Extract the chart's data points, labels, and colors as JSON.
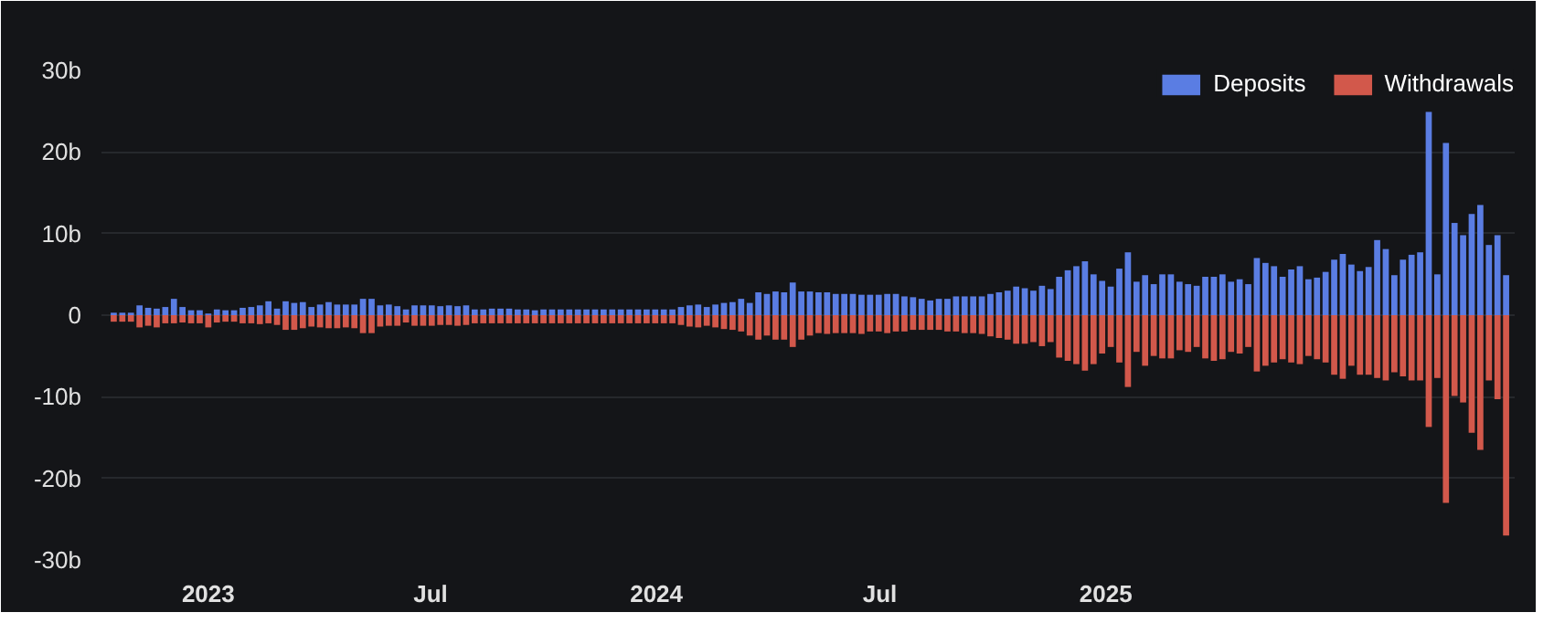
{
  "chart_data": {
    "type": "bar",
    "stacked": true,
    "legend": "top right",
    "grid": "y",
    "x": [
      "2022-10-16",
      "2022-10-23",
      "2022-10-30",
      "2022-11-06",
      "2022-11-13",
      "2022-11-20",
      "2022-11-27",
      "2022-12-04",
      "2022-12-11",
      "2022-12-18",
      "2022-12-25",
      "2023-01-01",
      "2023-01-08",
      "2023-01-15",
      "2023-01-22",
      "2023-01-29",
      "2023-02-05",
      "2023-02-12",
      "2023-02-19",
      "2023-02-26",
      "2023-03-05",
      "2023-03-12",
      "2023-03-19",
      "2023-03-26",
      "2023-04-02",
      "2023-04-09",
      "2023-04-16",
      "2023-04-23",
      "2023-04-30",
      "2023-05-07",
      "2023-05-14",
      "2023-05-21",
      "2023-05-28",
      "2023-06-04",
      "2023-06-11",
      "2023-06-18",
      "2023-06-25",
      "2023-07-02",
      "2023-07-09",
      "2023-07-16",
      "2023-07-23",
      "2023-07-30",
      "2023-08-06",
      "2023-08-13",
      "2023-08-20",
      "2023-08-27",
      "2023-09-03",
      "2023-09-10",
      "2023-09-17",
      "2023-09-24",
      "2023-10-01",
      "2023-10-08",
      "2023-10-15",
      "2023-10-22",
      "2023-10-29",
      "2023-11-05",
      "2023-11-12",
      "2023-11-19",
      "2023-11-26",
      "2023-12-03",
      "2023-12-10",
      "2023-12-17",
      "2023-12-24",
      "2023-12-31",
      "2024-01-07",
      "2024-01-14",
      "2024-01-21",
      "2024-01-28",
      "2024-02-04",
      "2024-02-11",
      "2024-02-18",
      "2024-02-25",
      "2024-03-03",
      "2024-03-10",
      "2024-03-17",
      "2024-03-24",
      "2024-03-31",
      "2024-04-07",
      "2024-04-14",
      "2024-04-21",
      "2024-04-28",
      "2024-05-05",
      "2024-05-12",
      "2024-05-19",
      "2024-05-26",
      "2024-06-02",
      "2024-06-09",
      "2024-06-16",
      "2024-06-23",
      "2024-06-30",
      "2024-07-07",
      "2024-07-14",
      "2024-07-21",
      "2024-07-28",
      "2024-08-04",
      "2024-08-11",
      "2024-08-18",
      "2024-08-25",
      "2024-09-01",
      "2024-09-08",
      "2024-09-15",
      "2024-09-22",
      "2024-09-29",
      "2024-10-06",
      "2024-10-13",
      "2024-10-20",
      "2024-10-27",
      "2024-11-03",
      "2024-11-10",
      "2024-11-17",
      "2024-11-24",
      "2024-12-01",
      "2024-12-08",
      "2024-12-15",
      "2024-12-22",
      "2024-12-29",
      "2025-01-05",
      "2025-01-12",
      "2025-01-19",
      "2025-01-26",
      "2025-02-02",
      "2025-02-09",
      "2025-02-16",
      "2025-02-23",
      "2025-03-02",
      "2025-03-09",
      "2025-03-16",
      "2025-03-23",
      "2025-03-30",
      "2025-04-06",
      "2025-04-13",
      "2025-04-20",
      "2025-04-27",
      "2025-05-04",
      "2025-05-11",
      "2025-05-18",
      "2025-05-25",
      "2025-06-01",
      "2025-06-08",
      "2025-06-15",
      "2025-06-22",
      "2025-06-29",
      "2025-07-06",
      "2025-07-13",
      "2025-07-20",
      "2025-07-27",
      "2025-08-03",
      "2025-08-10",
      "2025-08-17",
      "2025-08-24",
      "2025-08-31",
      "2025-09-07",
      "2025-09-14",
      "2025-09-21",
      "2025-09-28",
      "2025-10-05",
      "2025-10-12",
      "2025-10-19",
      "2025-10-26",
      "2025-11-02",
      "2025-11-09",
      "2025-11-16",
      "2025-11-23"
    ],
    "xlim": [
      "2022-10-06",
      "2025-11-30"
    ],
    "xticks": [
      {
        "value": "2023-01-01",
        "label": "2023"
      },
      {
        "value": "2023-07-01",
        "label": "Jul"
      },
      {
        "value": "2024-01-01",
        "label": "2024"
      },
      {
        "value": "2024-07-01",
        "label": "Jul"
      },
      {
        "value": "2025-01-01",
        "label": "2025"
      }
    ],
    "ylim": [
      -30,
      30
    ],
    "yticks": [
      {
        "value": -30,
        "label": "-30b"
      },
      {
        "value": -20,
        "label": "-20b"
      },
      {
        "value": -10,
        "label": "-10b"
      },
      0,
      {
        "value": 10,
        "label": "10b"
      },
      {
        "value": 20,
        "label": "20b"
      },
      {
        "value": 30,
        "label": "30b"
      }
    ],
    "series": [
      {
        "name": "Deposits",
        "color": "#5a7de3",
        "values": [
          0.3,
          0.3,
          0.3,
          1.2,
          0.9,
          0.8,
          1.0,
          2.0,
          1.0,
          0.6,
          0.6,
          0.2,
          0.7,
          0.6,
          0.6,
          0.9,
          1.0,
          1.2,
          1.7,
          0.8,
          1.7,
          1.5,
          1.6,
          1.0,
          1.3,
          1.6,
          1.3,
          1.3,
          1.3,
          2.0,
          2.0,
          1.2,
          1.3,
          1.1,
          0.7,
          1.2,
          1.2,
          1.2,
          1.1,
          1.2,
          1.1,
          1.2,
          0.7,
          0.7,
          0.8,
          0.8,
          0.8,
          0.7,
          0.7,
          0.6,
          0.7,
          0.7,
          0.7,
          0.7,
          0.7,
          0.7,
          0.7,
          0.7,
          0.7,
          0.7,
          0.7,
          0.7,
          0.7,
          0.7,
          0.7,
          0.7,
          1.0,
          1.2,
          1.3,
          1.0,
          1.3,
          1.5,
          1.6,
          2.0,
          1.5,
          2.8,
          2.6,
          2.9,
          2.8,
          4.0,
          2.9,
          2.9,
          2.8,
          2.8,
          2.6,
          2.6,
          2.6,
          2.5,
          2.5,
          2.5,
          2.6,
          2.6,
          2.3,
          2.2,
          2.0,
          1.8,
          2.0,
          2.0,
          2.3,
          2.3,
          2.3,
          2.3,
          2.6,
          2.8,
          3.0,
          3.5,
          3.3,
          3.0,
          3.6,
          3.2,
          4.7,
          5.5,
          6.0,
          6.6,
          5.0,
          4.2,
          3.5,
          5.7,
          7.7,
          4.1,
          4.9,
          3.8,
          5.0,
          5.0,
          4.1,
          3.8,
          3.6,
          4.7,
          4.7,
          5.0,
          4.1,
          4.4,
          3.8,
          7.0,
          6.4,
          6.0,
          4.7,
          5.6,
          6.0,
          4.4,
          4.6,
          5.3,
          6.8,
          7.5,
          6.2,
          5.4,
          5.9,
          9.2,
          8.1,
          4.9,
          6.8,
          7.4,
          7.7,
          24.9,
          5.0,
          21.1,
          11.3,
          9.8,
          12.4,
          13.5,
          8.6,
          9.8,
          4.9
        ]
      },
      {
        "name": "Withdrawals",
        "color": "#d2584b",
        "values": [
          -0.8,
          -0.8,
          -0.8,
          -1.5,
          -1.3,
          -1.5,
          -1.0,
          -1.0,
          -0.9,
          -1.0,
          -1.0,
          -1.5,
          -0.9,
          -0.8,
          -0.8,
          -1.0,
          -1.0,
          -1.1,
          -1.0,
          -1.2,
          -1.8,
          -1.8,
          -1.6,
          -1.4,
          -1.5,
          -1.6,
          -1.6,
          -1.5,
          -1.6,
          -2.2,
          -2.2,
          -1.4,
          -1.3,
          -1.3,
          -0.9,
          -1.3,
          -1.3,
          -1.3,
          -1.2,
          -1.2,
          -1.3,
          -1.2,
          -1.0,
          -1.0,
          -1.0,
          -1.0,
          -1.0,
          -1.0,
          -1.0,
          -1.0,
          -1.0,
          -1.0,
          -1.0,
          -1.0,
          -1.0,
          -1.0,
          -1.0,
          -1.0,
          -1.0,
          -1.0,
          -1.0,
          -1.0,
          -1.0,
          -1.0,
          -1.0,
          -1.0,
          -1.2,
          -1.4,
          -1.5,
          -1.3,
          -1.5,
          -1.7,
          -1.8,
          -2.0,
          -2.5,
          -3.0,
          -2.5,
          -3.0,
          -3.0,
          -3.9,
          -3.0,
          -2.5,
          -2.2,
          -2.3,
          -2.2,
          -2.2,
          -2.2,
          -2.3,
          -2.0,
          -2.0,
          -2.2,
          -2.0,
          -2.0,
          -1.8,
          -1.8,
          -1.8,
          -1.8,
          -2.0,
          -2.0,
          -2.2,
          -2.2,
          -2.3,
          -2.6,
          -2.8,
          -3.0,
          -3.5,
          -3.5,
          -3.3,
          -3.8,
          -3.3,
          -5.2,
          -5.6,
          -6.0,
          -6.8,
          -6.0,
          -4.7,
          -3.9,
          -5.8,
          -8.8,
          -4.5,
          -6.2,
          -5.0,
          -5.3,
          -5.3,
          -4.3,
          -4.5,
          -3.9,
          -5.3,
          -5.6,
          -5.4,
          -4.5,
          -4.7,
          -3.9,
          -6.9,
          -6.2,
          -5.8,
          -5.4,
          -5.8,
          -6.0,
          -5.0,
          -5.4,
          -5.8,
          -7.3,
          -7.8,
          -6.2,
          -7.3,
          -7.3,
          -7.7,
          -8.0,
          -7.0,
          -7.5,
          -8.0,
          -8.0,
          -13.7,
          -7.7,
          -23.0,
          -9.9,
          -10.7,
          -14.4,
          -16.5,
          -8.0,
          -10.3,
          -27.0
        ]
      }
    ]
  }
}
